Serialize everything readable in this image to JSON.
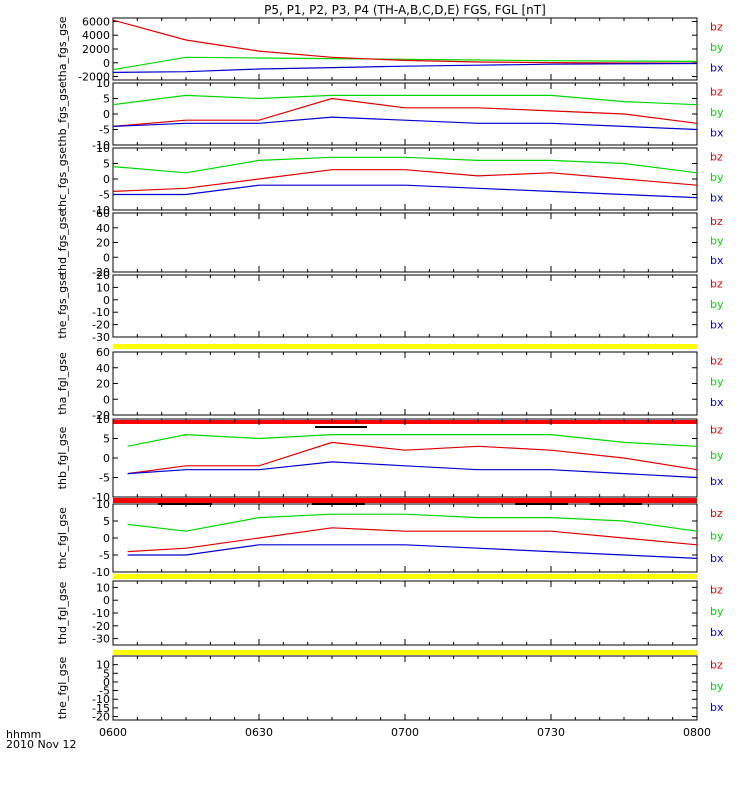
{
  "title": "P5, P1, P2, P3, P4 (TH-A,B,C,D,E) FGS, FGL [nT]",
  "x_axis": {
    "label_line1": "hhmm",
    "label_line2": "2010 Nov 12",
    "ticks": [
      "0600",
      "0630",
      "0700",
      "0730",
      "0800"
    ]
  },
  "legend_labels": [
    "bz",
    "by",
    "bx"
  ],
  "colors": {
    "bz": "#e00000",
    "by": "#00d800",
    "bx": "#0000d0",
    "quality_yellow": "#ffff00",
    "quality_red": "#ff0000",
    "axis": "#000000"
  },
  "chart_data": [
    {
      "type": "line",
      "ylabel": "tha_fgs_gse",
      "ylim": [
        -2500,
        6500
      ],
      "yticks": [
        "6000",
        "4000",
        "2000",
        "0",
        "-2000"
      ],
      "x": [
        "06:00",
        "06:15",
        "06:30",
        "06:45",
        "07:00",
        "07:15",
        "07:30",
        "07:45",
        "08:00"
      ],
      "series": [
        {
          "name": "bz",
          "values": [
            6200,
            3300,
            1700,
            800,
            350,
            120,
            20,
            -30,
            -60
          ]
        },
        {
          "name": "by",
          "values": [
            -1000,
            800,
            700,
            600,
            500,
            400,
            300,
            250,
            200
          ]
        },
        {
          "name": "bx",
          "values": [
            -1400,
            -1300,
            -900,
            -700,
            -500,
            -350,
            -200,
            -150,
            -100
          ]
        }
      ]
    },
    {
      "type": "line",
      "ylabel": "thb_fgs_gse",
      "ylim": [
        -10,
        10
      ],
      "yticks": [
        "10",
        "5",
        "0",
        "-5",
        "-10"
      ],
      "x": [
        "06:00",
        "06:15",
        "06:30",
        "06:45",
        "07:00",
        "07:15",
        "07:30",
        "07:45",
        "08:00"
      ],
      "series": [
        {
          "name": "bz",
          "values": [
            -4,
            -2,
            -2,
            5,
            2,
            2,
            1,
            0,
            -3
          ]
        },
        {
          "name": "by",
          "values": [
            3,
            6,
            5,
            6,
            6,
            6,
            6,
            4,
            3
          ]
        },
        {
          "name": "bx",
          "values": [
            -4,
            -3,
            -3,
            -1,
            -2,
            -3,
            -3,
            -4,
            -5
          ]
        }
      ]
    },
    {
      "type": "line",
      "ylabel": "thc_fgs_gse",
      "ylim": [
        -10,
        10
      ],
      "yticks": [
        "10",
        "5",
        "0",
        "-5",
        "-10"
      ],
      "x": [
        "06:00",
        "06:15",
        "06:30",
        "06:45",
        "07:00",
        "07:15",
        "07:30",
        "07:45",
        "08:00"
      ],
      "series": [
        {
          "name": "bz",
          "values": [
            -4,
            -3,
            0,
            3,
            3,
            1,
            2,
            0,
            -2
          ]
        },
        {
          "name": "by",
          "values": [
            4,
            2,
            6,
            7,
            7,
            6,
            6,
            5,
            2
          ]
        },
        {
          "name": "bx",
          "values": [
            -5,
            -5,
            -2,
            -2,
            -2,
            -3,
            -4,
            -5,
            -6
          ]
        }
      ]
    },
    {
      "type": "line",
      "ylabel": "thd_fgs_gse",
      "ylim": [
        -20,
        60
      ],
      "yticks": [
        "60",
        "40",
        "20",
        "0",
        "-20"
      ],
      "series": [
        {
          "name": "bz",
          "values": []
        },
        {
          "name": "by",
          "values": []
        },
        {
          "name": "bx",
          "values": []
        }
      ]
    },
    {
      "type": "line",
      "ylabel": "the_fgs_gse",
      "ylim": [
        -30,
        20
      ],
      "yticks": [
        "20",
        "10",
        "0",
        "-10",
        "-20",
        "-30"
      ],
      "series": [
        {
          "name": "bz",
          "values": []
        },
        {
          "name": "by",
          "values": []
        },
        {
          "name": "bx",
          "values": []
        }
      ]
    },
    {
      "type": "line",
      "ylabel": "tha_fgl_gse",
      "ylim": [
        -20,
        60
      ],
      "yticks": [
        "60",
        "40",
        "20",
        "0",
        "-20"
      ],
      "series": [
        {
          "name": "bz",
          "values": []
        },
        {
          "name": "by",
          "values": []
        },
        {
          "name": "bx",
          "values": []
        }
      ]
    },
    {
      "type": "line",
      "ylabel": "thb_fgl_gse",
      "ylim": [
        -10,
        10
      ],
      "yticks": [
        "10",
        "5",
        "0",
        "-5",
        "-10"
      ],
      "x": [
        "06:03",
        "06:15",
        "06:30",
        "06:45",
        "07:00",
        "07:15",
        "07:30",
        "07:45",
        "08:00"
      ],
      "series": [
        {
          "name": "bz",
          "values": [
            -4,
            -2,
            -2,
            4,
            2,
            3,
            2,
            0,
            -3
          ]
        },
        {
          "name": "by",
          "values": [
            3,
            6,
            5,
            6,
            6,
            6,
            6,
            4,
            3
          ]
        },
        {
          "name": "bx",
          "values": [
            -4,
            -3,
            -3,
            -1,
            -2,
            -3,
            -3,
            -4,
            -5
          ]
        }
      ]
    },
    {
      "type": "line",
      "ylabel": "thc_fgl_gse",
      "ylim": [
        -10,
        10
      ],
      "yticks": [
        "10",
        "5",
        "0",
        "-5",
        "-10"
      ],
      "x": [
        "06:03",
        "06:15",
        "06:30",
        "06:45",
        "07:00",
        "07:15",
        "07:30",
        "07:45",
        "08:00"
      ],
      "series": [
        {
          "name": "bz",
          "values": [
            -4,
            -3,
            0,
            3,
            2,
            2,
            2,
            0,
            -2
          ]
        },
        {
          "name": "by",
          "values": [
            4,
            2,
            6,
            7,
            7,
            6,
            6,
            5,
            2
          ]
        },
        {
          "name": "bx",
          "values": [
            -5,
            -5,
            -2,
            -2,
            -2,
            -3,
            -4,
            -5,
            -6
          ]
        }
      ]
    },
    {
      "type": "line",
      "ylabel": "thd_fgl_gse",
      "ylim": [
        -35,
        15
      ],
      "yticks": [
        "10",
        "0",
        "-10",
        "-20",
        "-30"
      ],
      "series": [
        {
          "name": "bz",
          "values": []
        },
        {
          "name": "by",
          "values": []
        },
        {
          "name": "bx",
          "values": []
        }
      ]
    },
    {
      "type": "line",
      "ylabel": "the_fgl_gse",
      "ylim": [
        -22,
        15
      ],
      "yticks": [
        "10",
        "5",
        "0",
        "-5",
        "-10",
        "-15",
        "-20"
      ],
      "series": [
        {
          "name": "bz",
          "values": []
        },
        {
          "name": "by",
          "values": []
        },
        {
          "name": "bx",
          "values": []
        }
      ]
    }
  ]
}
